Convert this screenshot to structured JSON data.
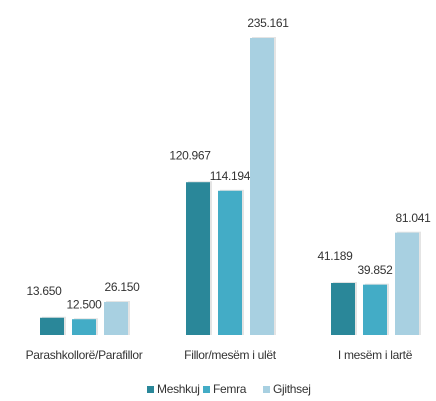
{
  "chart_data": {
    "type": "bar",
    "categories": [
      "Parashkollorë/Parafillor",
      "Fillor/mesëm i ulët",
      "I mesëm i lartë"
    ],
    "series": [
      {
        "name": "Meshkuj",
        "color": "#2a8799",
        "values": [
          13650,
          120967,
          41189
        ],
        "value_labels": [
          "13.650",
          "120.967",
          "41.189"
        ]
      },
      {
        "name": "Femra",
        "color": "#43acc6",
        "values": [
          12500,
          114194,
          39852
        ],
        "value_labels": [
          "12.500",
          "114.194",
          "39.852"
        ]
      },
      {
        "name": "Gjithsej",
        "color": "#a8d0e1",
        "values": [
          26150,
          235161,
          81041
        ],
        "value_labels": [
          "26.150",
          "235.161",
          "81.041"
        ]
      }
    ],
    "legend": "bottom"
  }
}
